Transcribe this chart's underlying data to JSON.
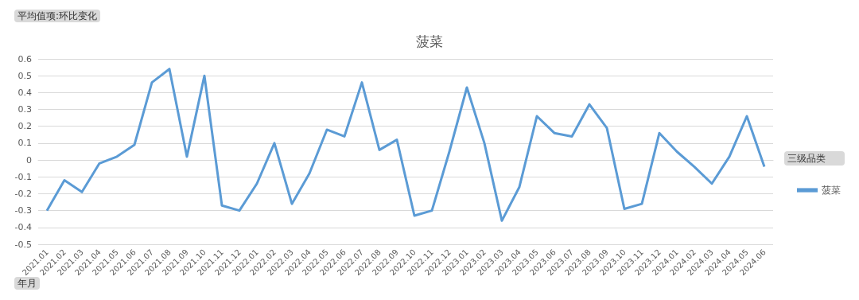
{
  "chart_data": {
    "type": "line",
    "title": "菠菜",
    "categories": [
      "2021.01",
      "2021.02",
      "2021.03",
      "2021.04",
      "2021.05",
      "2021.06",
      "2021.07",
      "2021.08",
      "2021.09",
      "2021.10",
      "2021.11",
      "2021.12",
      "2022.01",
      "2022.02",
      "2022.03",
      "2022.04",
      "2022.05",
      "2022.06",
      "2022.07",
      "2022.08",
      "2022.09",
      "2022.10",
      "2022.11",
      "2022.12",
      "2023.01",
      "2023.02",
      "2023.03",
      "2023.04",
      "2023.05",
      "2023.06",
      "2023.07",
      "2023.08",
      "2023.09",
      "2023.10",
      "2023.11",
      "2023.12",
      "2024.01",
      "2024.02",
      "2024.03",
      "2024.04",
      "2024.05",
      "2024.06"
    ],
    "series": [
      {
        "name": "菠菜",
        "color": "#5b9bd5",
        "values": [
          -0.3,
          -0.12,
          -0.19,
          -0.02,
          0.02,
          0.09,
          0.46,
          0.54,
          0.02,
          0.5,
          -0.27,
          -0.3,
          -0.14,
          0.1,
          -0.26,
          -0.08,
          0.18,
          0.14,
          0.46,
          0.06,
          0.12,
          -0.33,
          -0.3,
          0.05,
          0.43,
          0.1,
          -0.36,
          -0.16,
          0.26,
          0.16,
          0.14,
          0.33,
          0.19,
          -0.29,
          -0.26,
          0.16,
          0.05,
          -0.04,
          -0.14,
          0.02,
          0.26,
          -0.04
        ]
      }
    ],
    "ylim": [
      -0.5,
      0.6
    ],
    "yticks": [
      -0.5,
      -0.4,
      -0.3,
      -0.2,
      -0.1,
      0,
      0.1,
      0.2,
      0.3,
      0.4,
      0.5,
      0.6
    ],
    "grid": "y",
    "legend": "right",
    "legend_title": "三级品类",
    "marker": "none",
    "line_style": "solid",
    "annotations": [
      "平均值项:环比变化",
      "年月"
    ]
  }
}
